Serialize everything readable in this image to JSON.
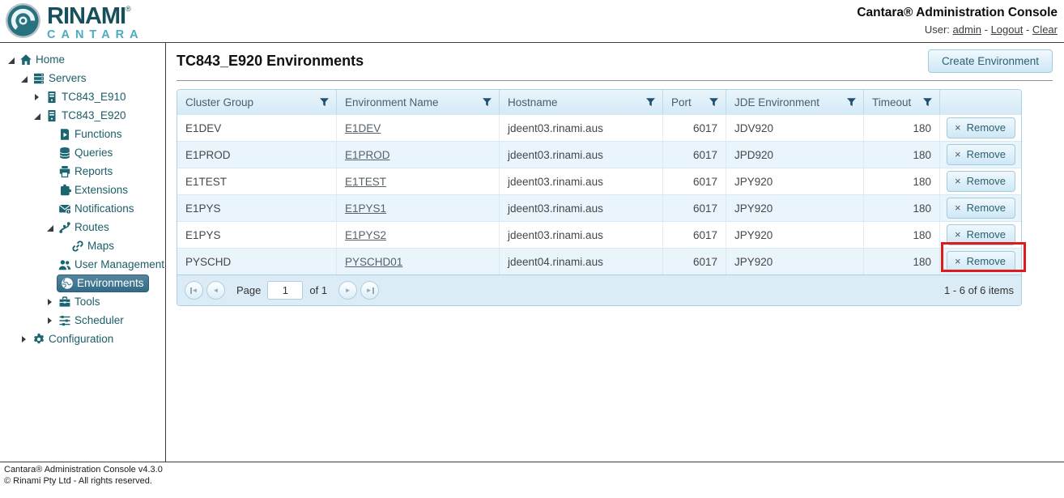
{
  "header": {
    "brand": "RINAMI",
    "brand_last_letter": "I",
    "brand_registered": "®",
    "brand_sub": "CANTARA",
    "title": "Cantara® Administration Console",
    "user_label": "User:",
    "user_name": "admin",
    "separator": "-",
    "logout_label": "Logout",
    "clear_label": "Clear"
  },
  "sidebar": {
    "items": [
      {
        "label": "Home",
        "icon": "home",
        "level": 0,
        "expander": "expanded",
        "selected": false
      },
      {
        "label": "Servers",
        "icon": "servers",
        "level": 1,
        "expander": "expanded",
        "selected": false
      },
      {
        "label": "TC843_E910",
        "icon": "server",
        "level": 2,
        "expander": "collapsed",
        "selected": false
      },
      {
        "label": "TC843_E920",
        "icon": "server",
        "level": 2,
        "expander": "expanded",
        "selected": false
      },
      {
        "label": "Functions",
        "icon": "functions",
        "level": 3,
        "expander": "none",
        "selected": false
      },
      {
        "label": "Queries",
        "icon": "queries",
        "level": 3,
        "expander": "none",
        "selected": false
      },
      {
        "label": "Reports",
        "icon": "reports",
        "level": 3,
        "expander": "none",
        "selected": false
      },
      {
        "label": "Extensions",
        "icon": "extensions",
        "level": 3,
        "expander": "none",
        "selected": false
      },
      {
        "label": "Notifications",
        "icon": "notifications",
        "level": 3,
        "expander": "none",
        "selected": false
      },
      {
        "label": "Routes",
        "icon": "routes",
        "level": 3,
        "expander": "expanded",
        "selected": false
      },
      {
        "label": "Maps",
        "icon": "maps",
        "level": 4,
        "expander": "none",
        "selected": false
      },
      {
        "label": "User Management",
        "icon": "user-management",
        "level": 3,
        "expander": "none",
        "selected": false
      },
      {
        "label": "Environments",
        "icon": "environments",
        "level": 3,
        "expander": "none",
        "selected": true
      },
      {
        "label": "Tools",
        "icon": "tools",
        "level": 3,
        "expander": "collapsed",
        "selected": false
      },
      {
        "label": "Scheduler",
        "icon": "scheduler",
        "level": 3,
        "expander": "collapsed",
        "selected": false
      },
      {
        "label": "Configuration",
        "icon": "configuration",
        "level": 1,
        "expander": "collapsed",
        "selected": false
      }
    ]
  },
  "main": {
    "title": "TC843_E920 Environments",
    "create_button_label": "Create Environment",
    "table": {
      "columns": [
        {
          "label": "Cluster Group",
          "filter": true
        },
        {
          "label": "Environment Name",
          "filter": true
        },
        {
          "label": "Hostname",
          "filter": true
        },
        {
          "label": "Port",
          "filter": true
        },
        {
          "label": "JDE Environment",
          "filter": true
        },
        {
          "label": "Timeout",
          "filter": true
        },
        {
          "label": "",
          "filter": false
        }
      ],
      "remove_label": "Remove",
      "remove_icon_glyph": "×",
      "rows": [
        {
          "cluster_group": "E1DEV",
          "environment_name": "E1DEV",
          "hostname": "jdeent03.rinami.aus",
          "port": "6017",
          "jde_environment": "JDV920",
          "timeout": "180",
          "highlighted": false
        },
        {
          "cluster_group": "E1PROD",
          "environment_name": "E1PROD",
          "hostname": "jdeent03.rinami.aus",
          "port": "6017",
          "jde_environment": "JPD920",
          "timeout": "180",
          "highlighted": false
        },
        {
          "cluster_group": "E1TEST",
          "environment_name": "E1TEST",
          "hostname": "jdeent03.rinami.aus",
          "port": "6017",
          "jde_environment": "JPY920",
          "timeout": "180",
          "highlighted": false
        },
        {
          "cluster_group": "E1PYS",
          "environment_name": "E1PYS1",
          "hostname": "jdeent03.rinami.aus",
          "port": "6017",
          "jde_environment": "JPY920",
          "timeout": "180",
          "highlighted": false
        },
        {
          "cluster_group": "E1PYS",
          "environment_name": "E1PYS2",
          "hostname": "jdeent03.rinami.aus",
          "port": "6017",
          "jde_environment": "JPY920",
          "timeout": "180",
          "highlighted": false
        },
        {
          "cluster_group": "PYSCHD",
          "environment_name": "PYSCHD01",
          "hostname": "jdeent04.rinami.aus",
          "port": "6017",
          "jde_environment": "JPY920",
          "timeout": "180",
          "highlighted": true
        }
      ]
    },
    "pager": {
      "page_label": "Page",
      "page_value": "1",
      "of_label": "of 1",
      "items_summary": "1 - 6 of 6 items"
    }
  },
  "footer": {
    "line1": "Cantara® Administration Console v4.3.0",
    "line2": "© Rinami Pty Ltd - All rights reserved."
  },
  "colors": {
    "accent_teal": "#1b5e68",
    "brand_light_teal": "#4aacbd",
    "selected_item_bg": "#3e7795",
    "table_header_bg": "#d9ecf7",
    "alt_row_bg": "#eaf4fb",
    "highlight_red": "#e01b1b"
  }
}
